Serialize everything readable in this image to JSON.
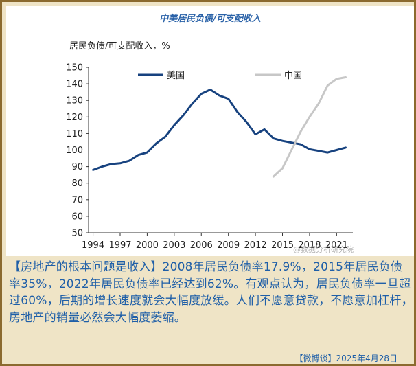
{
  "chart_data": {
    "type": "line",
    "title": "中美居民负债/可支配收入",
    "ylabel": "居民负债/可支配收入，%",
    "ylim": [
      50,
      150
    ],
    "xlim": [
      1993.5,
      2022.8
    ],
    "yticks": [
      "150",
      "140",
      "130",
      "120",
      "110",
      "100",
      "90",
      "80",
      "70",
      "60",
      "50"
    ],
    "xticks": [
      "1994",
      "1997",
      "2000",
      "2003",
      "2006",
      "2009",
      "2012",
      "2015",
      "2018",
      "2021"
    ],
    "grid": false,
    "legend_position": "top",
    "series": [
      {
        "name": "美国",
        "color": "#17427f",
        "x": [
          1994,
          1995,
          1996,
          1997,
          1998,
          1999,
          2000,
          2001,
          2002,
          2003,
          2004,
          2005,
          2006,
          2007,
          2008,
          2009,
          2010,
          2011,
          2012,
          2013,
          2014,
          2015,
          2016,
          2017,
          2018,
          2019,
          2020,
          2021,
          2022
        ],
        "values": [
          88,
          90,
          91.5,
          92,
          93.5,
          97,
          98.5,
          104,
          108,
          115,
          121,
          128,
          134,
          136.5,
          133,
          131,
          123,
          117,
          109.5,
          112.5,
          107,
          105.5,
          104.5,
          103.5,
          100.5,
          99.5,
          98.5,
          100,
          101.5
        ]
      },
      {
        "name": "中国",
        "color": "#c7c7c7",
        "x": [
          2014,
          2015,
          2016,
          2017,
          2018,
          2019,
          2020,
          2021,
          2022
        ],
        "values": [
          84,
          89,
          100,
          111,
          120,
          128,
          139,
          143,
          144
        ]
      }
    ]
  },
  "caption": "【房地产的根本问题是收入】2008年居民负债率17.9%，2015年居民负债率35%，2022年居民负债率已经达到62%。有观点认为，居民负债率一旦超过60%，后期的增长速度就会大幅度放缓。人们不愿意贷款，不愿意加杠杆，房地产的销量必然会大幅度萎缩。",
  "source": "【微博谈】2025年4月28日",
  "watermark": "@数据分析研究院"
}
